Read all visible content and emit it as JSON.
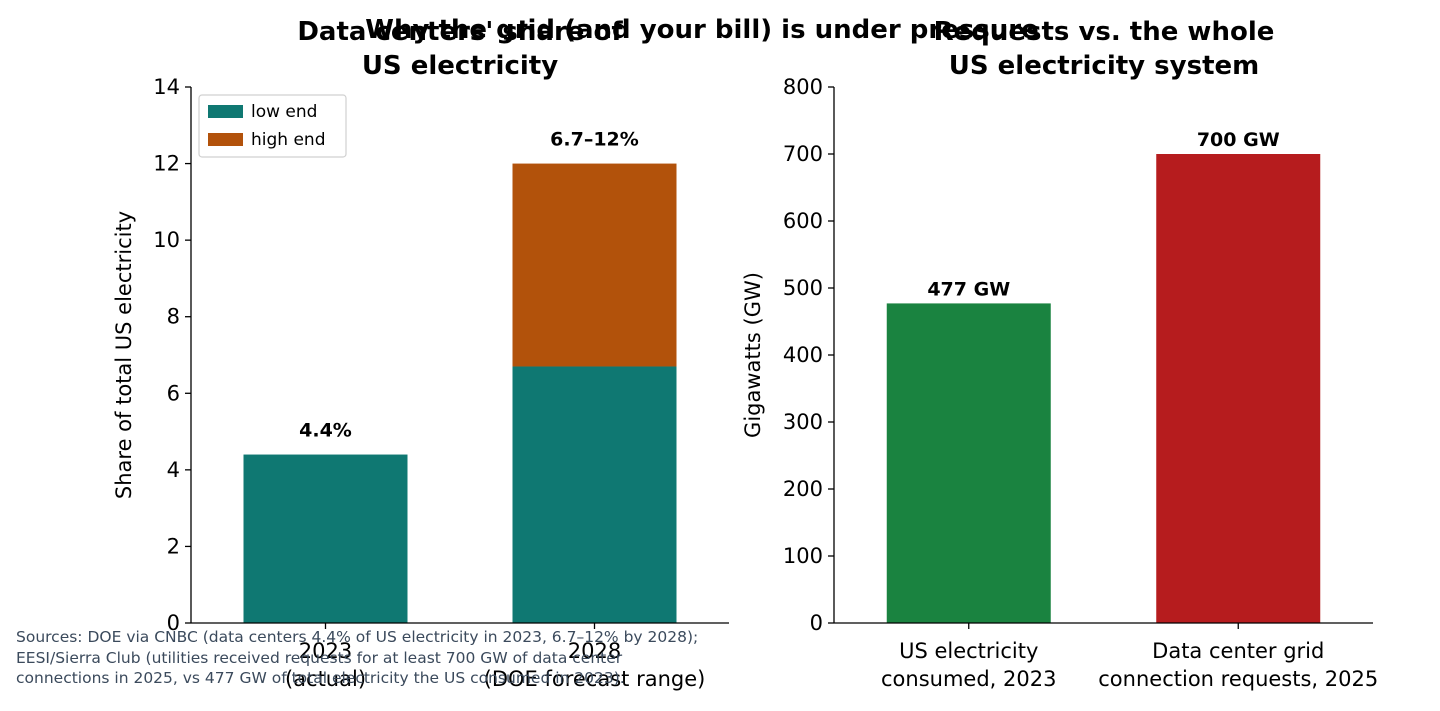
{
  "figure": {
    "suptitle": "Why the grid (and your bill) is under pressure",
    "sources": [
      "Sources: DOE via CNBC (data centers 4.4% of US electricity in 2023, 6.7–12% by 2028);",
      "EESI/Sierra Club (utilities received requests for at least 700 GW of data center",
      "connections in 2025, vs 477 GW of total electricity the US consumed in 2023)."
    ]
  },
  "chart_data": [
    {
      "type": "bar",
      "stacked": true,
      "title_lines": [
        "Data centers' share of",
        "US electricity"
      ],
      "categories": [
        "2023\n(actual)",
        "2028\n(DOE forecast range)"
      ],
      "series": [
        {
          "name": "low end",
          "values": [
            4.4,
            6.7
          ],
          "color": "#0f7872"
        },
        {
          "name": "high end",
          "values": [
            0,
            5.3
          ],
          "color": "#b2520b"
        }
      ],
      "bar_labels": [
        "4.4%",
        "6.7–12%"
      ],
      "xlabel": "",
      "ylabel": "Share of total US electricity",
      "ylim": [
        0,
        14
      ],
      "yticks": [
        0,
        2,
        4,
        6,
        8,
        10,
        12,
        14
      ],
      "grid": false,
      "legend": "upper-left"
    },
    {
      "type": "bar",
      "title_lines": [
        "Requests vs. the whole",
        "US electricity system"
      ],
      "categories": [
        "US electricity\nconsumed, 2023",
        "Data center grid\nconnection requests, 2025"
      ],
      "values": [
        477,
        700
      ],
      "colors": [
        "#1a8340",
        "#b61c1e"
      ],
      "bar_labels": [
        "477 GW",
        "700 GW"
      ],
      "xlabel": "",
      "ylabel": "Gigawatts (GW)",
      "ylim": [
        0,
        800
      ],
      "yticks": [
        0,
        100,
        200,
        300,
        400,
        500,
        600,
        700,
        800
      ],
      "grid": false
    }
  ]
}
